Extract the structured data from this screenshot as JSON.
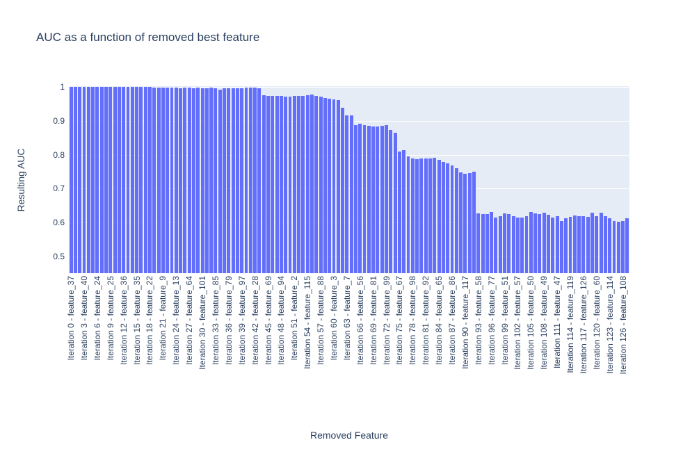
{
  "chart_data": {
    "type": "bar",
    "title": "AUC as a function of removed best feature",
    "xlabel": "Removed Feature",
    "ylabel": "Resulting AUC",
    "n_bars": 128,
    "x_tick_step": 3,
    "x_tick_labels": [
      "Iteration 0 - feature_37",
      "Iteration 3 - feature_40",
      "Iteration 6 - feature_24",
      "Iteration 9 - feature_25",
      "Iteration 12 - feature_36",
      "Iteration 15 - feature_35",
      "Iteration 18 - feature_22",
      "Iteration 21 - feature_9",
      "Iteration 24 - feature_13",
      "Iteration 27 - feature_64",
      "Iteration 30 - feature_101",
      "Iteration 33 - feature_85",
      "Iteration 36 - feature_79",
      "Iteration 39 - feature_97",
      "Iteration 42 - feature_28",
      "Iteration 45 - feature_69",
      "Iteration 48 - feature_94",
      "Iteration 51 - feature_2",
      "Iteration 54 - feature_115",
      "Iteration 57 - feature_88",
      "Iteration 60 - feature_3",
      "Iteration 63 - feature_7",
      "Iteration 66 - feature_56",
      "Iteration 69 - feature_81",
      "Iteration 72 - feature_99",
      "Iteration 75 - feature_67",
      "Iteration 78 - feature_98",
      "Iteration 81 - feature_92",
      "Iteration 84 - feature_65",
      "Iteration 87 - feature_86",
      "Iteration 90 - feature_117",
      "Iteration 93 - feature_58",
      "Iteration 96 - feature_77",
      "Iteration 99 - feature_51",
      "Iteration 102 - feature_57",
      "Iteration 105 - feature_50",
      "Iteration 108 - feature_49",
      "Iteration 111 - feature_47",
      "Iteration 114 - feature_119",
      "Iteration 117 - feature_126",
      "Iteration 120 - feature_60",
      "Iteration 123 - feature_114",
      "Iteration 126 - feature_108"
    ],
    "values": [
      1.0,
      1.0,
      1.0,
      1.0,
      1.0,
      1.0,
      1.0,
      1.0,
      1.0,
      1.0,
      1.0,
      1.0,
      1.0,
      1.0,
      1.0,
      1.0,
      1.0,
      1.0,
      0.999,
      0.998,
      0.997,
      0.998,
      0.997,
      0.997,
      0.998,
      0.995,
      0.997,
      0.997,
      0.996,
      0.997,
      0.996,
      0.996,
      0.997,
      0.996,
      0.992,
      0.995,
      0.996,
      0.996,
      0.995,
      0.996,
      0.997,
      0.997,
      0.997,
      0.996,
      0.975,
      0.973,
      0.974,
      0.973,
      0.973,
      0.972,
      0.972,
      0.973,
      0.973,
      0.974,
      0.976,
      0.977,
      0.974,
      0.971,
      0.968,
      0.966,
      0.963,
      0.961,
      0.939,
      0.915,
      0.916,
      0.888,
      0.891,
      0.888,
      0.886,
      0.884,
      0.884,
      0.886,
      0.887,
      0.874,
      0.864,
      0.81,
      0.813,
      0.796,
      0.789,
      0.787,
      0.789,
      0.79,
      0.79,
      0.792,
      0.785,
      0.778,
      0.774,
      0.768,
      0.76,
      0.748,
      0.743,
      0.746,
      0.751,
      0.628,
      0.626,
      0.626,
      0.632,
      0.615,
      0.619,
      0.628,
      0.625,
      0.619,
      0.614,
      0.615,
      0.619,
      0.631,
      0.628,
      0.626,
      0.63,
      0.623,
      0.615,
      0.619,
      0.605,
      0.613,
      0.617,
      0.621,
      0.619,
      0.619,
      0.617,
      0.63,
      0.619,
      0.629,
      0.618,
      0.613,
      0.605,
      0.602,
      0.604,
      0.613
    ],
    "y_tick_labels": [
      "1",
      "0.9",
      "0.8",
      "0.7",
      "0.6",
      "0.5"
    ],
    "y_tick_values": [
      1.0,
      0.9,
      0.8,
      0.7,
      0.6,
      0.5
    ],
    "ylim": [
      0.451,
      1.002
    ],
    "grid": true,
    "legend": "none",
    "colors": {
      "bar": "#636efa",
      "plot_bg": "#e5ecf6",
      "paper_bg": "#ffffff",
      "gridline": "#ffffff",
      "text": "#2a3f5f"
    }
  }
}
